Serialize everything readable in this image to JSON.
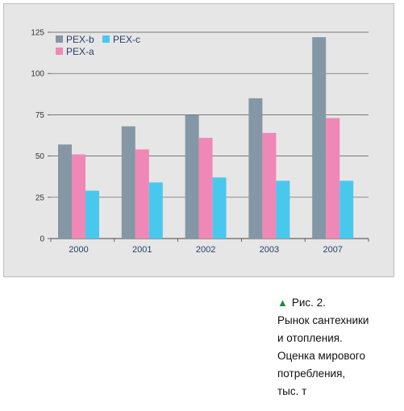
{
  "chart_data": {
    "type": "bar",
    "categories": [
      "2000",
      "2001",
      "2002",
      "2003",
      "2007"
    ],
    "series": [
      {
        "name": "PEX-b",
        "values": [
          57,
          68,
          75,
          85,
          122
        ],
        "color": "#8497a4"
      },
      {
        "name": "PEX-a",
        "values": [
          51,
          54,
          61,
          64,
          73
        ],
        "color": "#ef88b6"
      },
      {
        "name": "PEX-c",
        "values": [
          29,
          34,
          37,
          35,
          35
        ],
        "color": "#49c8ee"
      }
    ],
    "ylim": [
      0,
      125
    ],
    "yticks": [
      0,
      25,
      50,
      75,
      100,
      125
    ],
    "grid": true,
    "legend": {
      "placement": "top-left",
      "entries": [
        "PEX-b",
        "PEX-c",
        "PEX-a"
      ]
    }
  },
  "caption": {
    "marker": "▲",
    "figure_label": "Рис. 2.",
    "lines": [
      "Рынок сантехники",
      "и отопления.",
      "Оценка мирового",
      "потребления,",
      "тыс. т"
    ]
  }
}
